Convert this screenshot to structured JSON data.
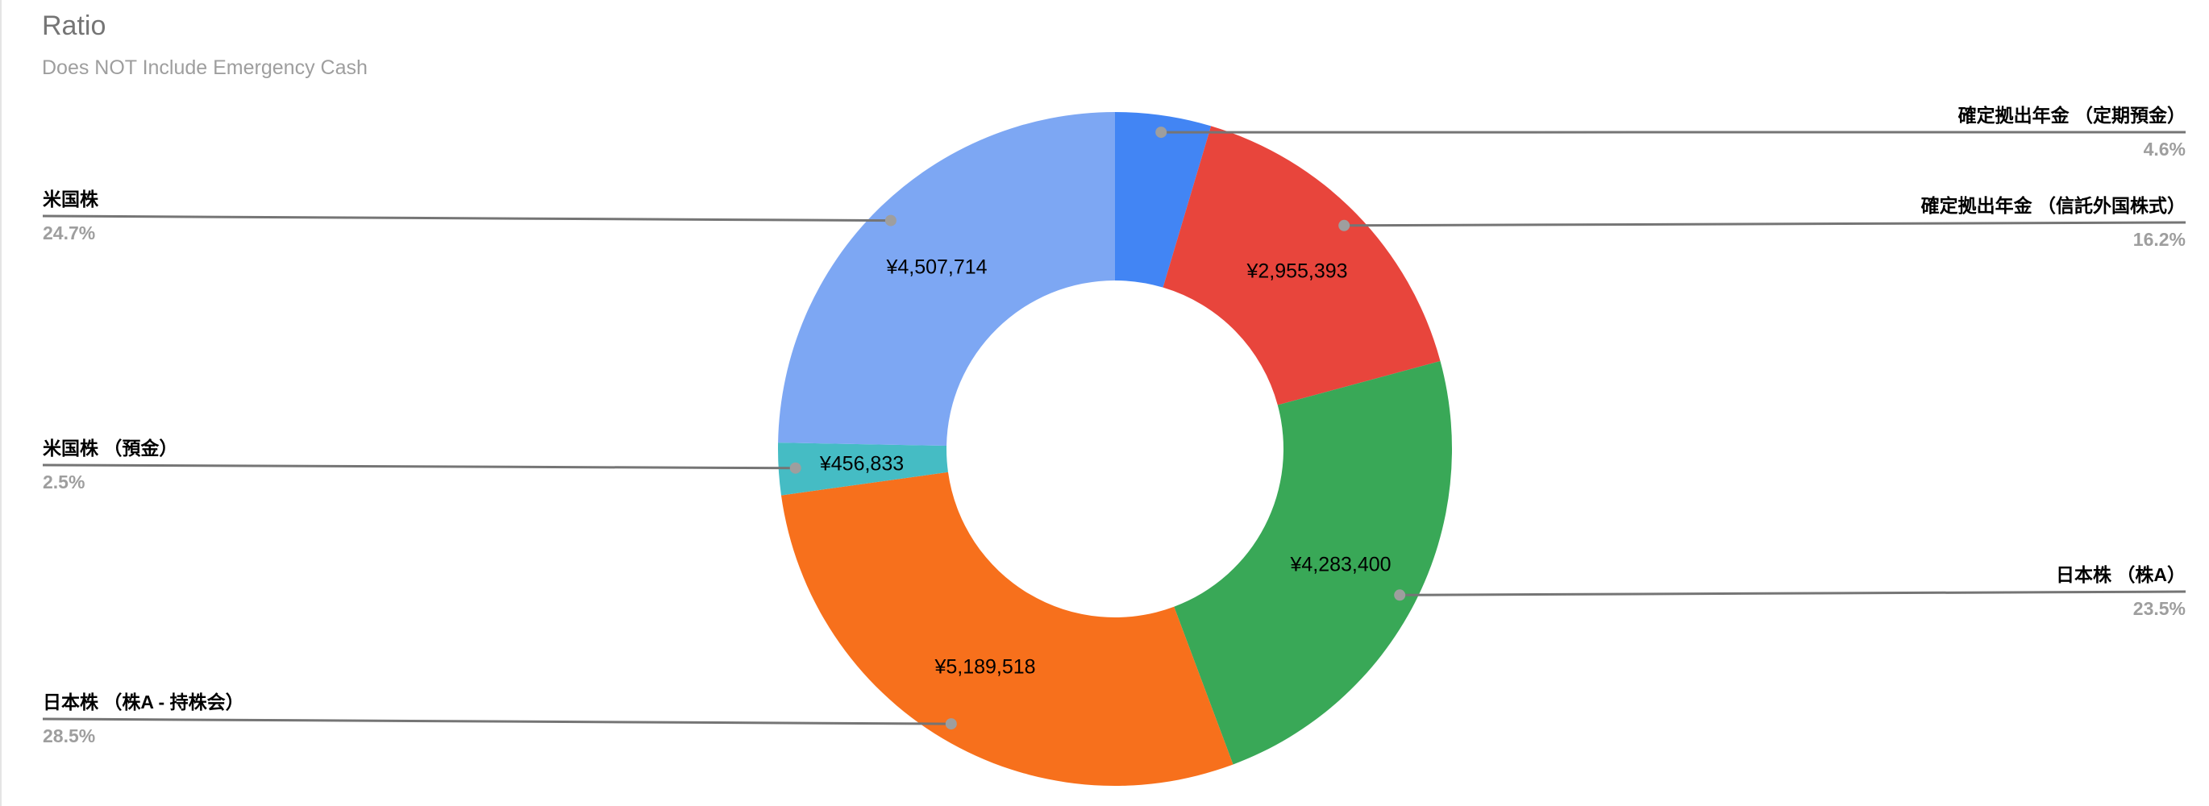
{
  "chart_data": {
    "type": "pie",
    "subtype": "donut",
    "title": "Ratio",
    "subtitle": "Does NOT Include Emergency Cash",
    "hole_ratio": 0.5,
    "currency": "¥",
    "legend_position": "outside-callouts",
    "slices": [
      {
        "label": "確定拠出年金 （定期預金）",
        "percent": 4.6,
        "percent_label": "4.6%",
        "value_label": "",
        "color": "#4285F4"
      },
      {
        "label": "確定拠出年金 （信託外国株式）",
        "percent": 16.2,
        "percent_label": "16.2%",
        "value": 2955393,
        "value_label": "¥2,955,393",
        "color": "#E8453C"
      },
      {
        "label": "日本株 （株A）",
        "percent": 23.5,
        "percent_label": "23.5%",
        "value": 4283400,
        "value_label": "¥4,283,400",
        "color": "#39A857"
      },
      {
        "label": "日本株 （株A - 持株会）",
        "percent": 28.5,
        "percent_label": "28.5%",
        "value": 5189518,
        "value_label": "¥5,189,518",
        "color": "#F7701C"
      },
      {
        "label": "米国株 （預金）",
        "percent": 2.5,
        "percent_label": "2.5%",
        "value": 456833,
        "value_label": "¥456,833",
        "color": "#45BCC4"
      },
      {
        "label": "米国株",
        "percent": 24.7,
        "percent_label": "24.7%",
        "value": 4507714,
        "value_label": "¥4,507,714",
        "color": "#7DA7F3"
      }
    ],
    "callout_colors": {
      "leader_line": "#757575",
      "anchor_dot": "#9E9E9E",
      "percent_text": "#9E9E9E",
      "name_text": "#000000"
    }
  }
}
